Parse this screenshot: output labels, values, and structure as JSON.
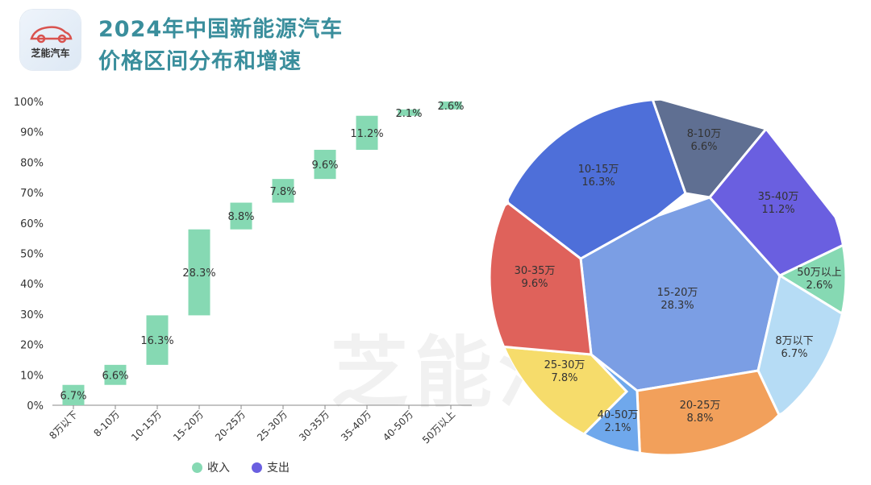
{
  "header": {
    "logo_text": "芝能汽车",
    "title_line1": "2024年中国新能源汽车",
    "title_line2": "价格区间分布和增速"
  },
  "watermark": "芝能汽车",
  "legend": [
    {
      "label": "收入",
      "color": "#86d9b3"
    },
    {
      "label": "支出",
      "color": "#6a5fe0"
    }
  ],
  "chart_data": [
    {
      "type": "bar",
      "subtype": "waterfall",
      "categories": [
        "8万以下",
        "8-10万",
        "10-15万",
        "15-20万",
        "20-25万",
        "25-30万",
        "30-35万",
        "35-40万",
        "40-50万",
        "50万以上"
      ],
      "values": [
        6.7,
        6.6,
        16.3,
        28.3,
        8.8,
        7.8,
        9.6,
        11.2,
        2.1,
        2.6
      ],
      "data_labels": [
        "6.7%",
        "6.6%",
        "16.3%",
        "28.3%",
        "8.8%",
        "7.8%",
        "9.6%",
        "11.2%",
        "2.1%",
        "2.6%"
      ],
      "yticks": [
        "0%",
        "10%",
        "20%",
        "30%",
        "40%",
        "50%",
        "60%",
        "70%",
        "80%",
        "90%",
        "100%"
      ],
      "ylim": [
        0,
        100
      ],
      "bar_color": "#86d9b3",
      "legend_position": "bottom"
    },
    {
      "type": "pie",
      "subtype": "voronoi",
      "slices": [
        {
          "label": "15-20万",
          "value": 28.3,
          "text": "28.3%",
          "color": "#7b9ee4"
        },
        {
          "label": "10-15万",
          "value": 16.3,
          "text": "16.3%",
          "color": "#4e6fd9"
        },
        {
          "label": "8-10万",
          "value": 6.6,
          "text": "6.6%",
          "color": "#5f6f92"
        },
        {
          "label": "35-40万",
          "value": 11.2,
          "text": "11.2%",
          "color": "#6a5fe0"
        },
        {
          "label": "50万以上",
          "value": 2.6,
          "text": "2.6%",
          "color": "#86d9b3"
        },
        {
          "label": "8万以下",
          "value": 6.7,
          "text": "6.7%",
          "color": "#b6dcf5"
        },
        {
          "label": "20-25万",
          "value": 8.8,
          "text": "8.8%",
          "color": "#f2a05b"
        },
        {
          "label": "40-50万",
          "value": 2.1,
          "text": "2.1%",
          "color": "#6fa8ec"
        },
        {
          "label": "25-30万",
          "value": 7.8,
          "text": "7.8%",
          "color": "#f6dc6b"
        },
        {
          "label": "30-35万",
          "value": 9.6,
          "text": "9.6%",
          "color": "#df625b"
        }
      ]
    }
  ]
}
